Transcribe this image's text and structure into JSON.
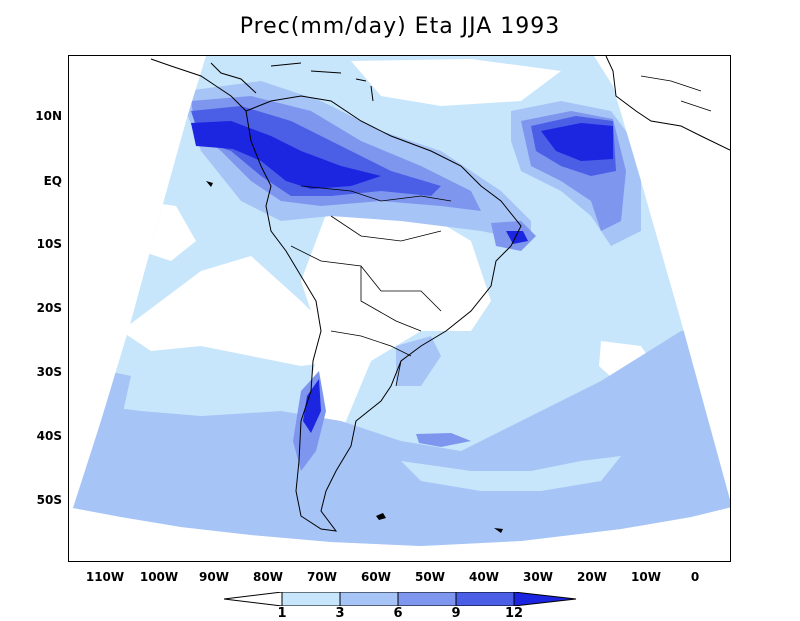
{
  "title": "Prec(mm/day) Eta JJA 1993",
  "latitude_ticks": [
    "10N",
    "EQ",
    "10S",
    "20S",
    "30S",
    "40S",
    "50S"
  ],
  "longitude_ticks": [
    "110W",
    "100W",
    "90W",
    "80W",
    "70W",
    "60W",
    "50W",
    "40W",
    "30W",
    "20W",
    "10W",
    "0"
  ],
  "colorbar": {
    "levels": [
      "1",
      "3",
      "6",
      "9",
      "12"
    ],
    "colors": [
      "#ffffff",
      "#c8e6fb",
      "#a7c4f6",
      "#7e96ee",
      "#4a5ee6",
      "#1c25e0"
    ]
  },
  "shading_colors": {
    "lt1": "#ffffff",
    "1to3": "#c8e6fb",
    "3to6": "#a7c4f6",
    "6to9": "#7e96ee",
    "9to12": "#4a5ee6",
    "gt12": "#1c25e0"
  }
}
